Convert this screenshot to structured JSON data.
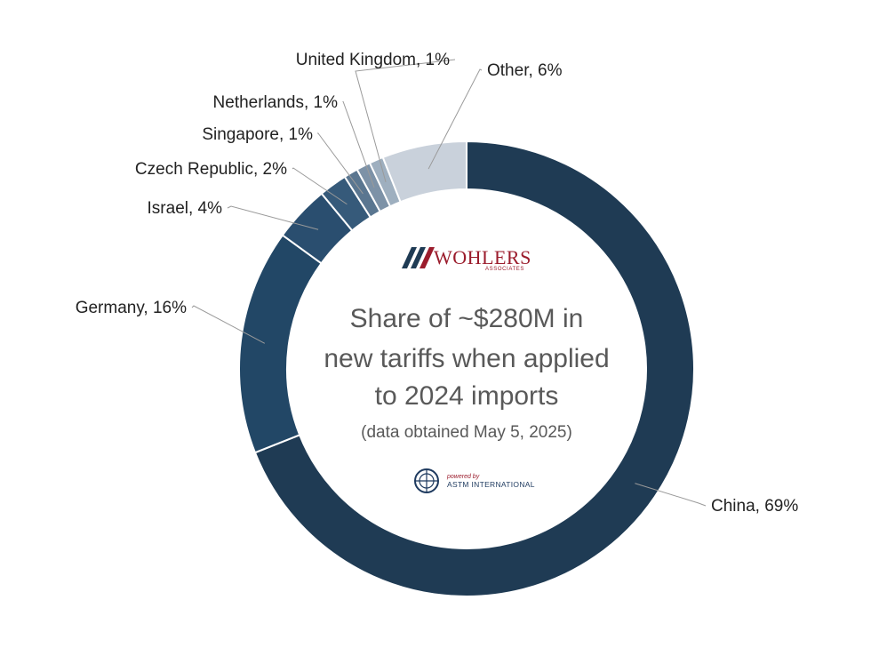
{
  "chart_data": {
    "type": "pie",
    "variant": "donut",
    "title_lines": [
      "Share of ~$280M in",
      "new tariffs when applied",
      "to 2024 imports"
    ],
    "subtitle": "(data obtained May 5, 2025)",
    "unit": "%",
    "slices": [
      {
        "label": "China, 69%",
        "value": 69,
        "color": "#1f3b54"
      },
      {
        "label": "Germany, 16%",
        "value": 16,
        "color": "#224766"
      },
      {
        "label": "Israel, 4%",
        "value": 4,
        "color": "#2a4e6f"
      },
      {
        "label": "Czech Republic, 2%",
        "value": 2,
        "color": "#365a7a"
      },
      {
        "label": "Singapore, 1%",
        "value": 1,
        "color": "#5a7690"
      },
      {
        "label": "Netherlands, 1%",
        "value": 1,
        "color": "#7d92a7"
      },
      {
        "label": "United Kingdom, 1%",
        "value": 1,
        "color": "#9eafbf"
      },
      {
        "label": "Other, 6%",
        "value": 6,
        "color": "#c9d1db"
      }
    ],
    "legend": "none"
  },
  "branding": {
    "top_logo": {
      "word": "WOHLERS",
      "sub": "ASSOCIATES"
    },
    "bottom_logo": {
      "powered": "powered by",
      "name": "ASTM INTERNATIONAL"
    }
  }
}
